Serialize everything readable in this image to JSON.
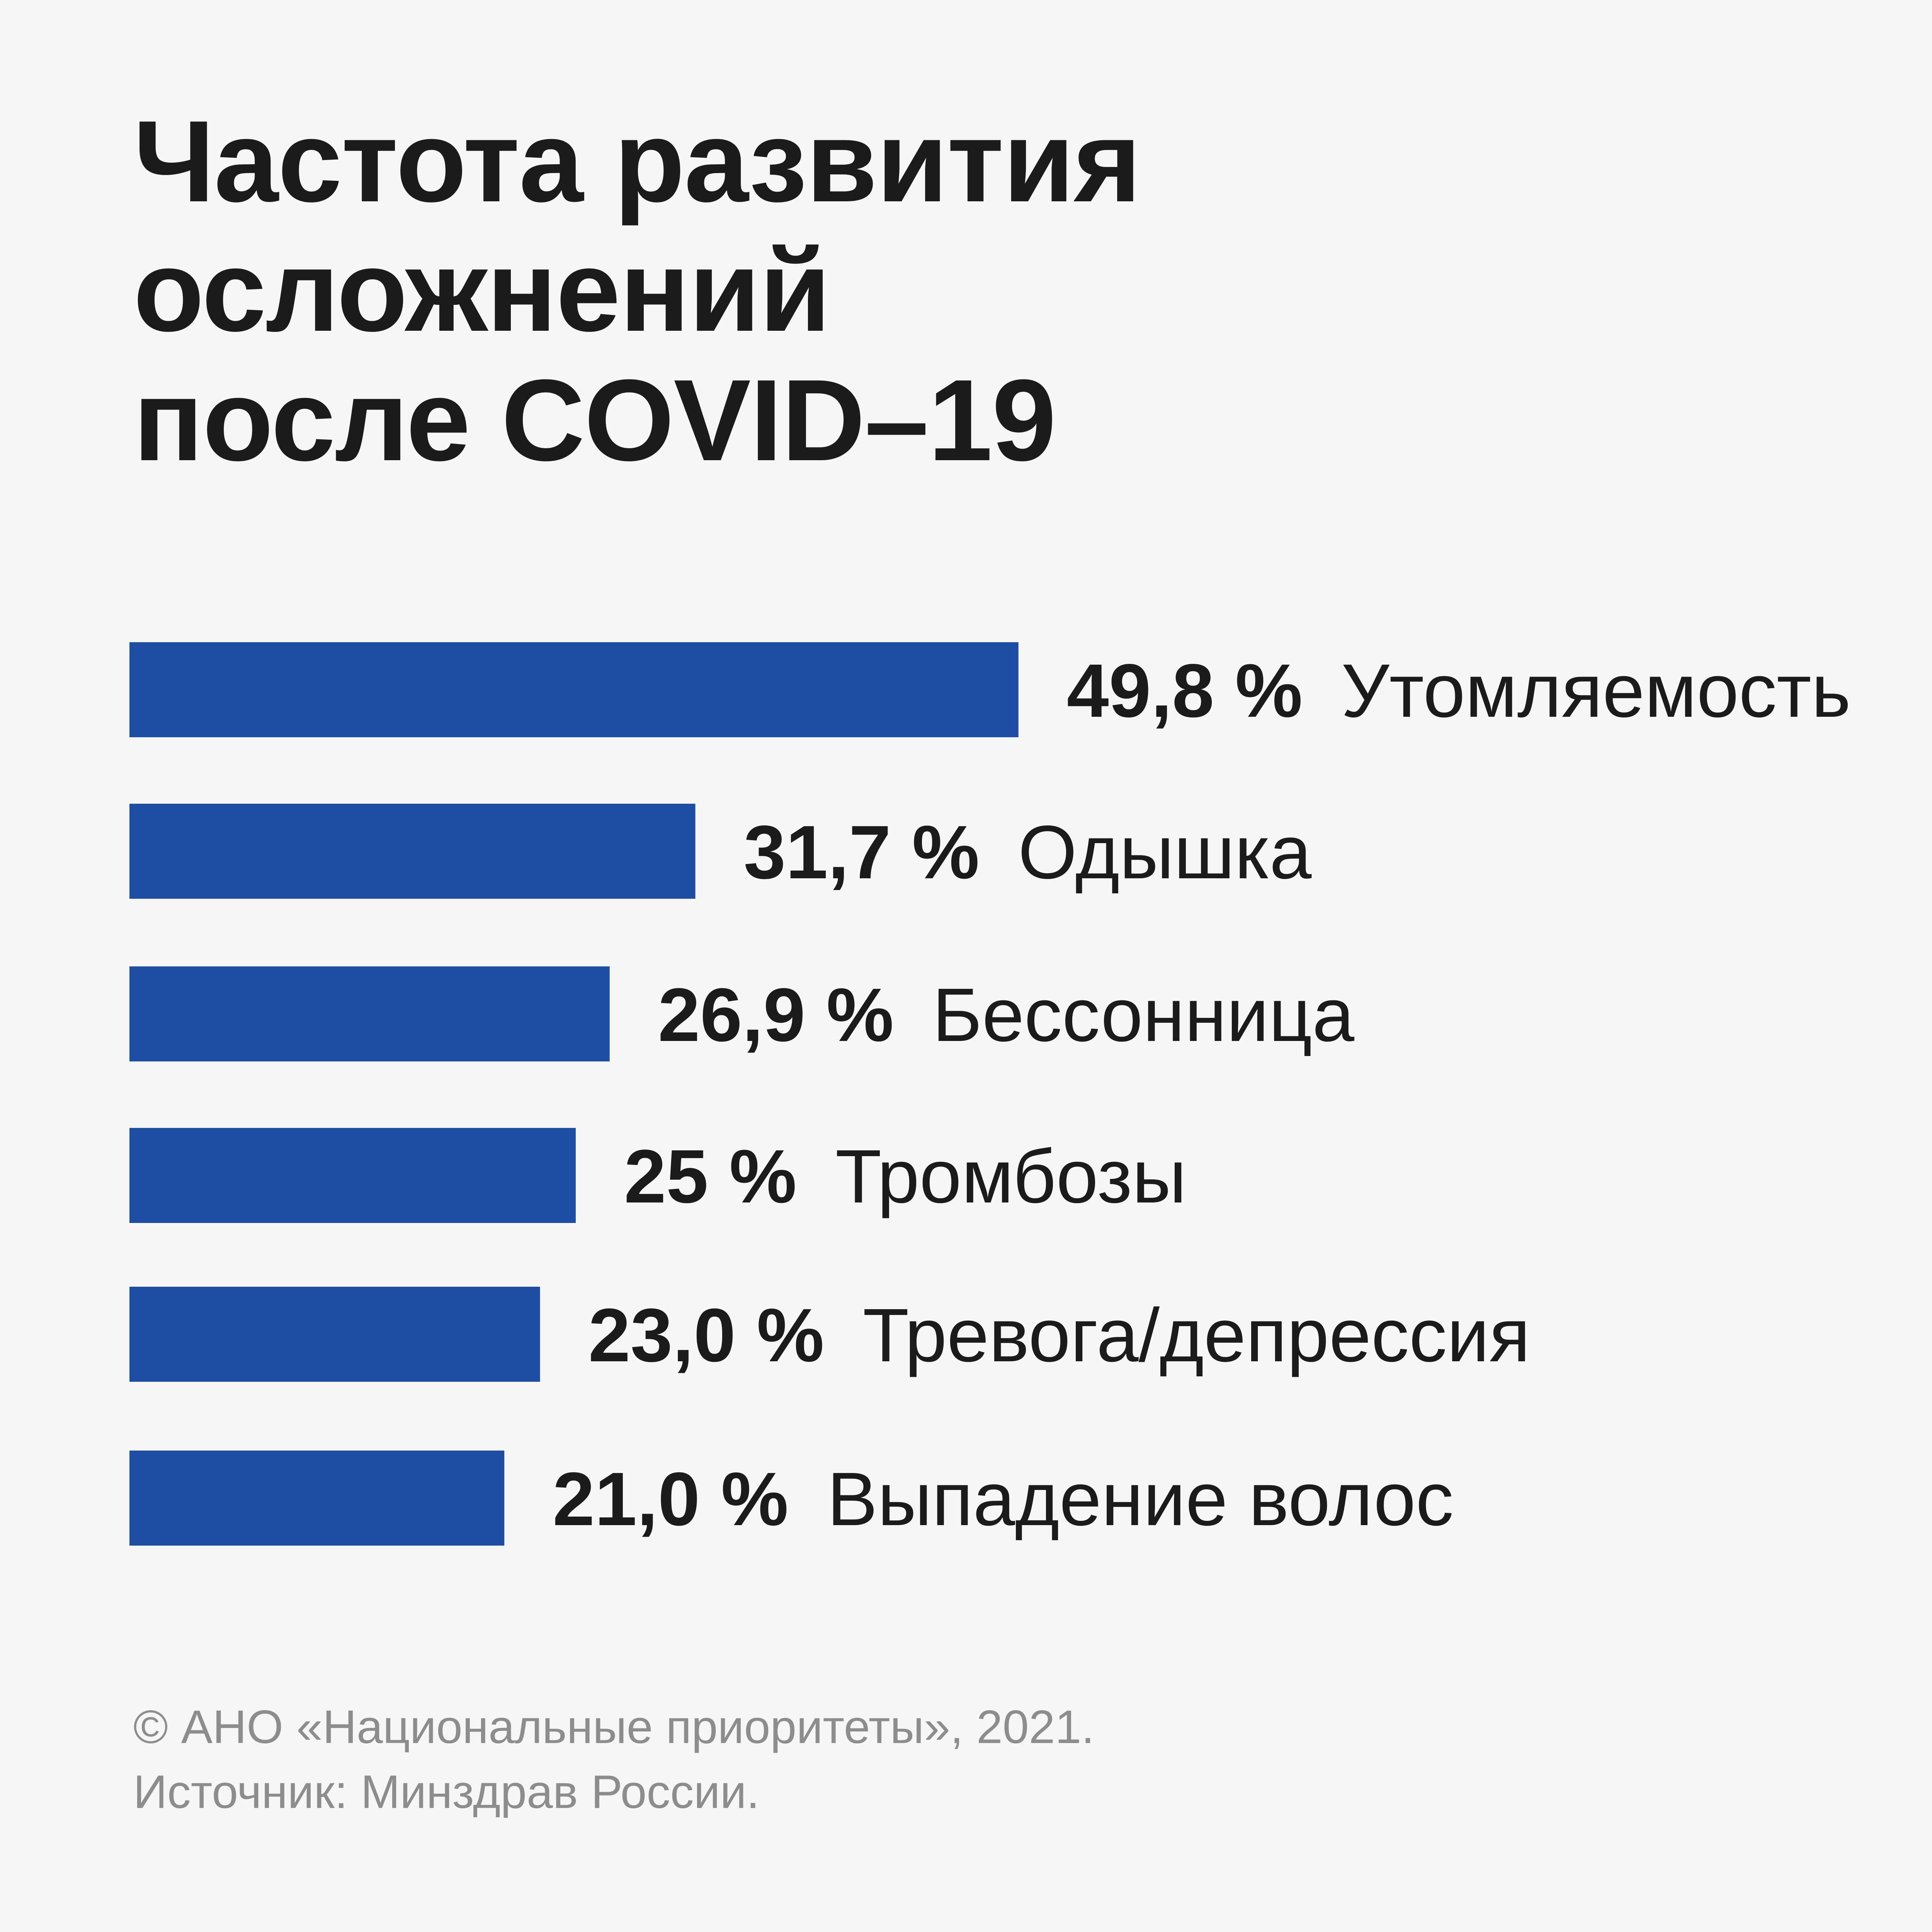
{
  "title_lines": [
    "Частота развития",
    "осложнений",
    "после COVID–19"
  ],
  "chart_data": {
    "type": "bar",
    "orientation": "horizontal",
    "title": "Частота развития осложнений после COVID–19",
    "categories": [
      "Утомляемость",
      "Одышка",
      "Бессонница",
      "Тромбозы",
      "Тревога/депрессия",
      "Выпадение волос"
    ],
    "values": [
      49.8,
      31.7,
      26.9,
      25,
      23.0,
      21.0
    ],
    "value_labels": [
      "49,8 %",
      "31,7 %",
      "26,9 %",
      "25 %",
      "23,0 %",
      "21,0 %"
    ],
    "unit": "%",
    "grid": false,
    "axes_visible": false,
    "bar_color": "#1d4ea3"
  },
  "footer": {
    "copyright": "© АНО «Национальные приоритеты», 2021.",
    "source": "Источник: Минздрав России."
  },
  "colors": {
    "background": "#f6f6f6",
    "text": "#1b1b1b",
    "footer_text": "#8d8d8d"
  }
}
